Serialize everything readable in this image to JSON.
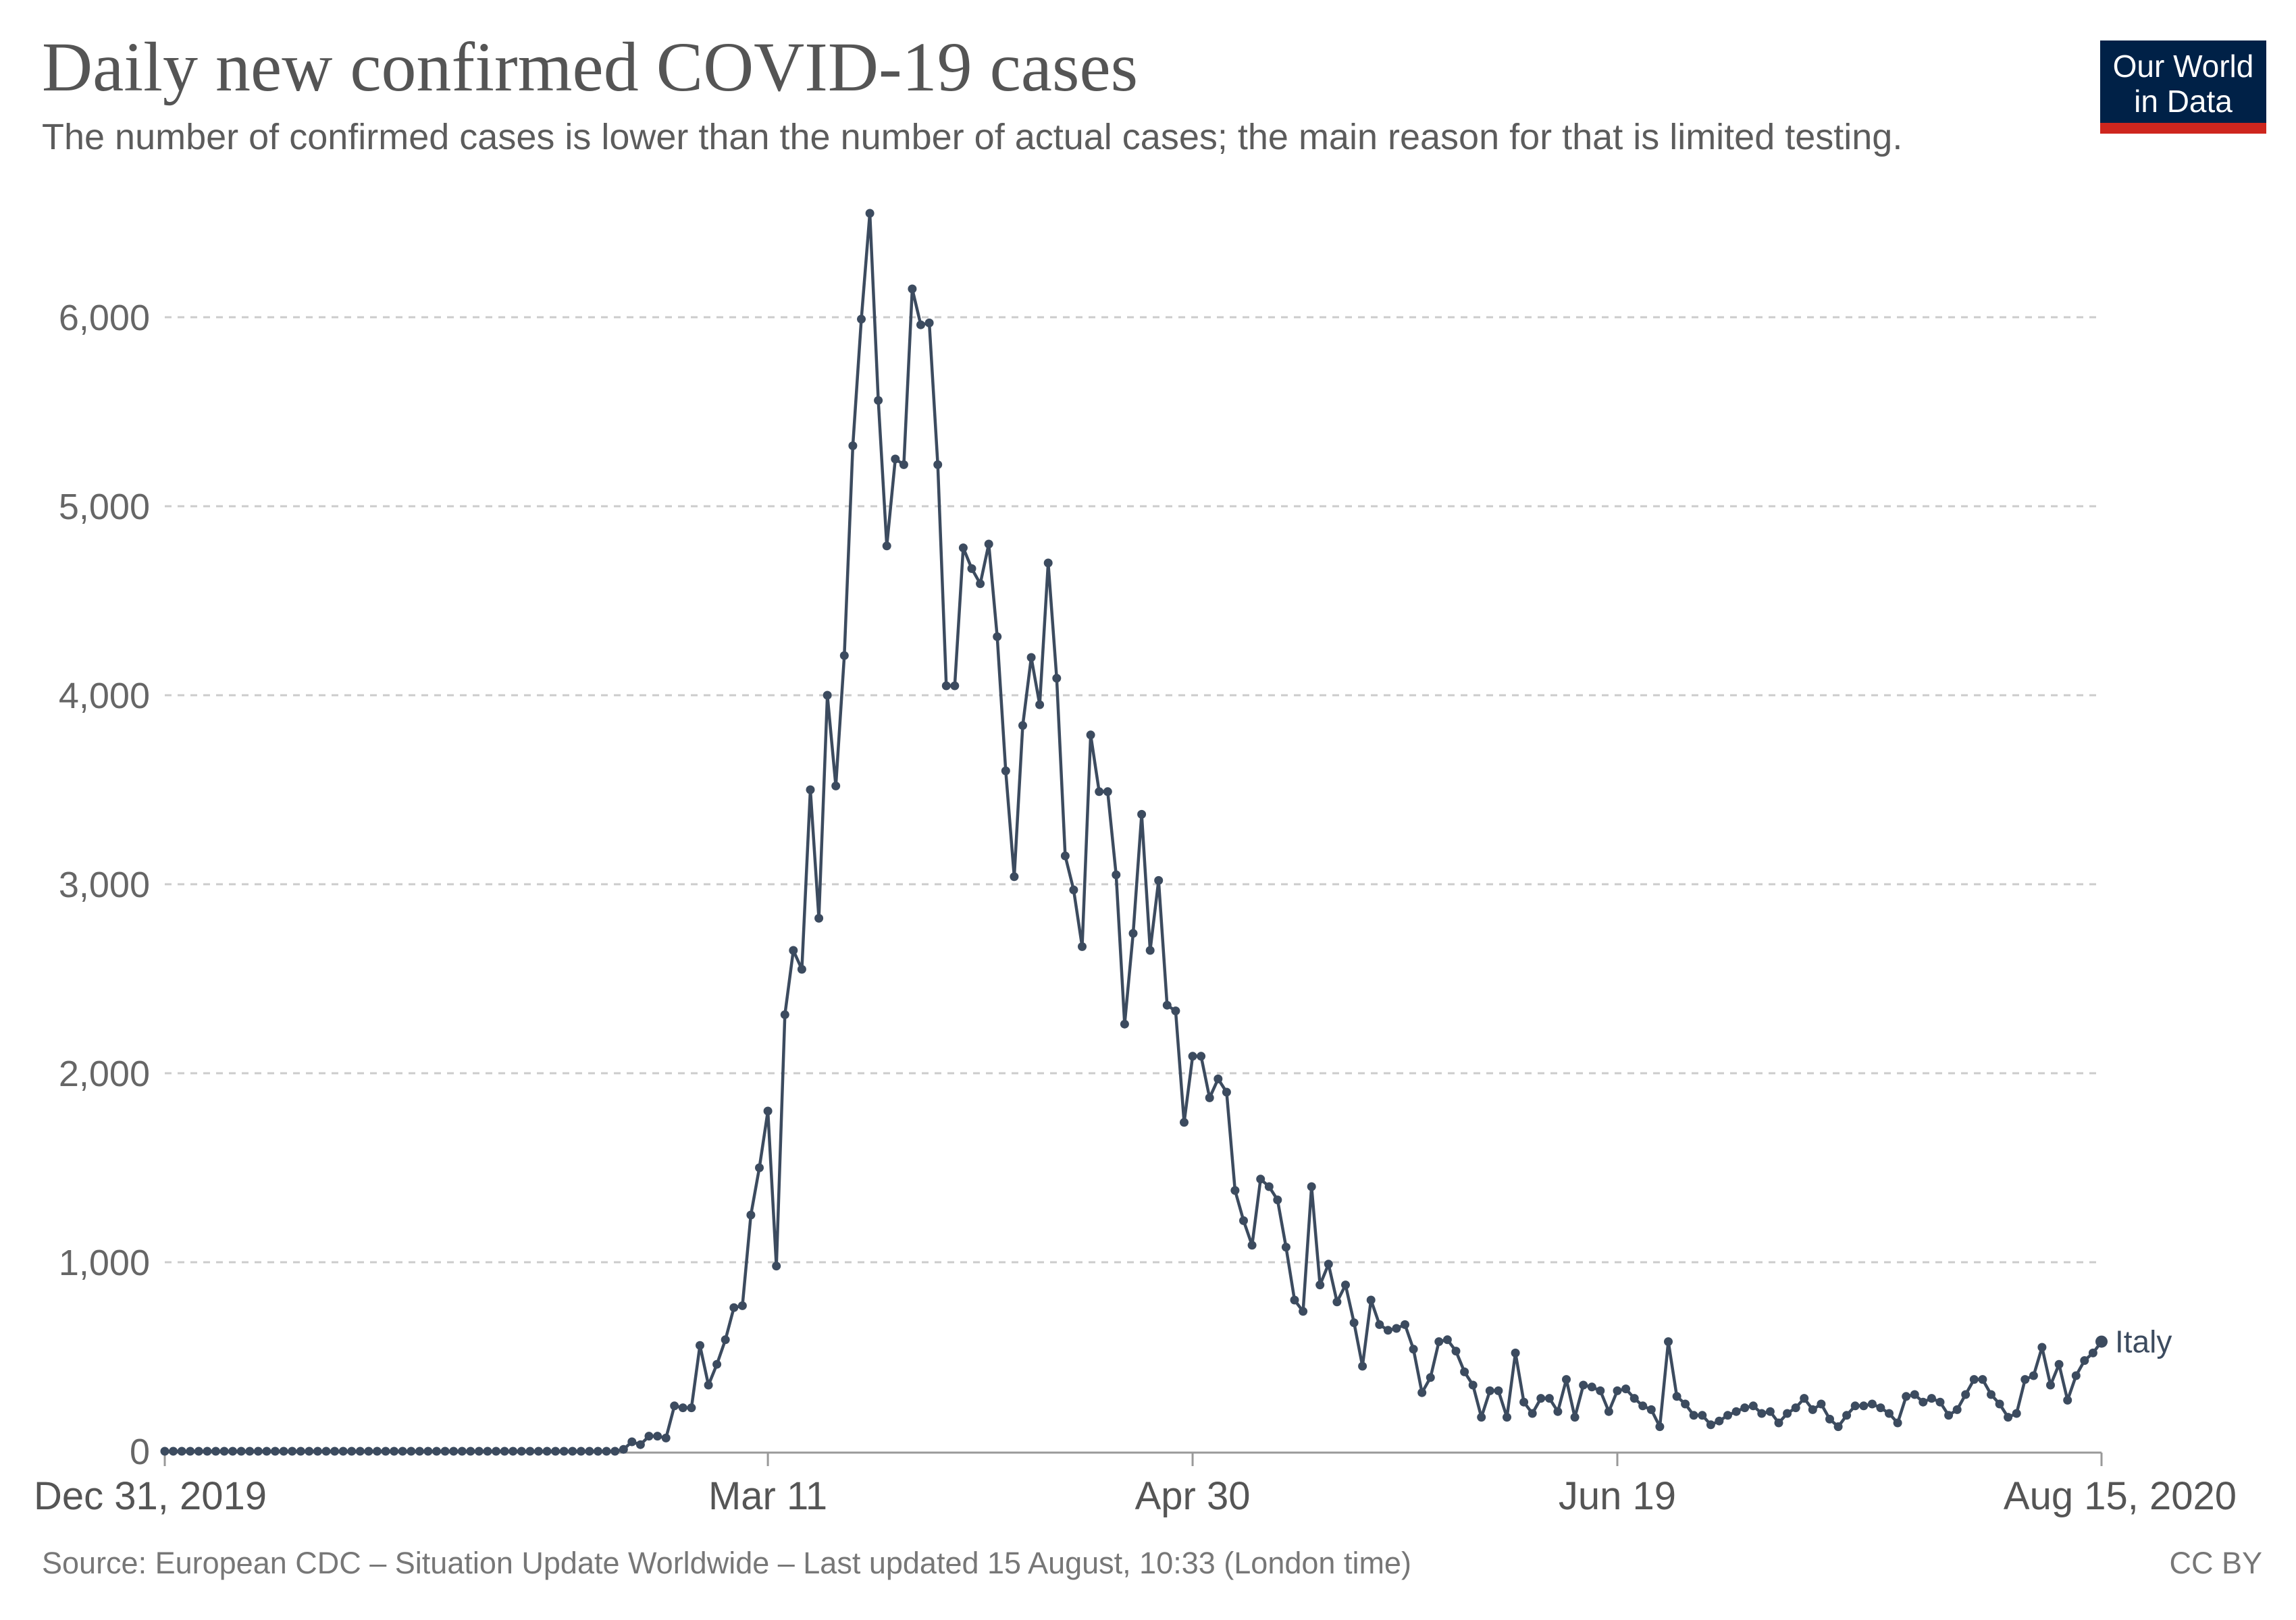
{
  "header": {
    "title": "Daily new confirmed COVID-19 cases",
    "subtitle": "The number of confirmed cases is lower than the number of actual cases; the main reason for that is limited testing."
  },
  "logo": {
    "line1": "Our World",
    "line2": "in Data"
  },
  "footer": {
    "source": "Source: European CDC – Situation Update Worldwide – Last updated 15 August, 10:33 (London time)",
    "license": "CC BY"
  },
  "colors": {
    "series": "#3c4b5f",
    "grid": "#cccccc",
    "logo_bg": "#002147",
    "logo_bar": "#ce261e"
  },
  "chart_data": {
    "type": "line",
    "title": "Daily new confirmed COVID-19 cases",
    "subtitle": "The number of confirmed cases is lower than the number of actual cases; the main reason for that is limited testing.",
    "xlabel": "",
    "ylabel": "",
    "x_range": [
      "2019-12-31",
      "2020-08-15"
    ],
    "ylim": [
      0,
      6600
    ],
    "y_ticks": [
      {
        "value": 0,
        "label": "0"
      },
      {
        "value": 1000,
        "label": "1,000"
      },
      {
        "value": 2000,
        "label": "2,000"
      },
      {
        "value": 3000,
        "label": "3,000"
      },
      {
        "value": 4000,
        "label": "4,000"
      },
      {
        "value": 5000,
        "label": "5,000"
      },
      {
        "value": 6000,
        "label": "6,000"
      }
    ],
    "x_ticks": [
      {
        "date": "2019-12-31",
        "label": "Dec 31, 2019"
      },
      {
        "date": "2020-03-11",
        "label": "Mar 11"
      },
      {
        "date": "2020-04-30",
        "label": "Apr 30"
      },
      {
        "date": "2020-06-19",
        "label": "Jun 19"
      },
      {
        "date": "2020-08-15",
        "label": "Aug 15, 2020"
      }
    ],
    "grid": true,
    "legend": "end-of-line label",
    "series": [
      {
        "name": "Italy",
        "start_date": "2019-12-31",
        "values": [
          0,
          0,
          0,
          0,
          0,
          0,
          0,
          0,
          0,
          0,
          0,
          0,
          0,
          0,
          0,
          0,
          0,
          0,
          0,
          0,
          0,
          0,
          0,
          0,
          0,
          0,
          0,
          0,
          0,
          0,
          0,
          0,
          0,
          0,
          0,
          0,
          0,
          0,
          0,
          0,
          0,
          0,
          0,
          0,
          0,
          0,
          0,
          0,
          0,
          0,
          0,
          0,
          0,
          0,
          10,
          50,
          35,
          80,
          80,
          70,
          240,
          230,
          230,
          560,
          350,
          460,
          590,
          760,
          770,
          1250,
          1500,
          1800,
          980,
          2310,
          2650,
          2550,
          3500,
          2820,
          4000,
          3520,
          4210,
          5320,
          5990,
          6550,
          5560,
          4790,
          5250,
          5220,
          6150,
          5960,
          5970,
          5220,
          4050,
          4050,
          4780,
          4670,
          4590,
          4800,
          4310,
          3600,
          3040,
          3840,
          4200,
          3950,
          4700,
          4090,
          3150,
          2970,
          2670,
          3790,
          3490,
          3490,
          3050,
          2260,
          2740,
          3370,
          2650,
          3020,
          2360,
          2330,
          1740,
          2090,
          2090,
          1870,
          1970,
          1900,
          1380,
          1220,
          1090,
          1440,
          1400,
          1330,
          1080,
          800,
          740,
          1400,
          880,
          990,
          790,
          880,
          680,
          450,
          800,
          670,
          640,
          650,
          670,
          540,
          310,
          390,
          580,
          590,
          530,
          420,
          350,
          180,
          320,
          320,
          180,
          520,
          260,
          200,
          280,
          280,
          210,
          380,
          180,
          350,
          340,
          320,
          210,
          320,
          330,
          280,
          240,
          220,
          130,
          580,
          290,
          250,
          190,
          190,
          140,
          160,
          190,
          210,
          230,
          240,
          200,
          210,
          150,
          200,
          230,
          280,
          220,
          250,
          170,
          130,
          190,
          240,
          240,
          250,
          230,
          200,
          150,
          290,
          300,
          260,
          280,
          260,
          190,
          220,
          300,
          380,
          380,
          300,
          250,
          180,
          200,
          380,
          400,
          550,
          350,
          460,
          270,
          400,
          480,
          520,
          580
        ]
      }
    ]
  }
}
